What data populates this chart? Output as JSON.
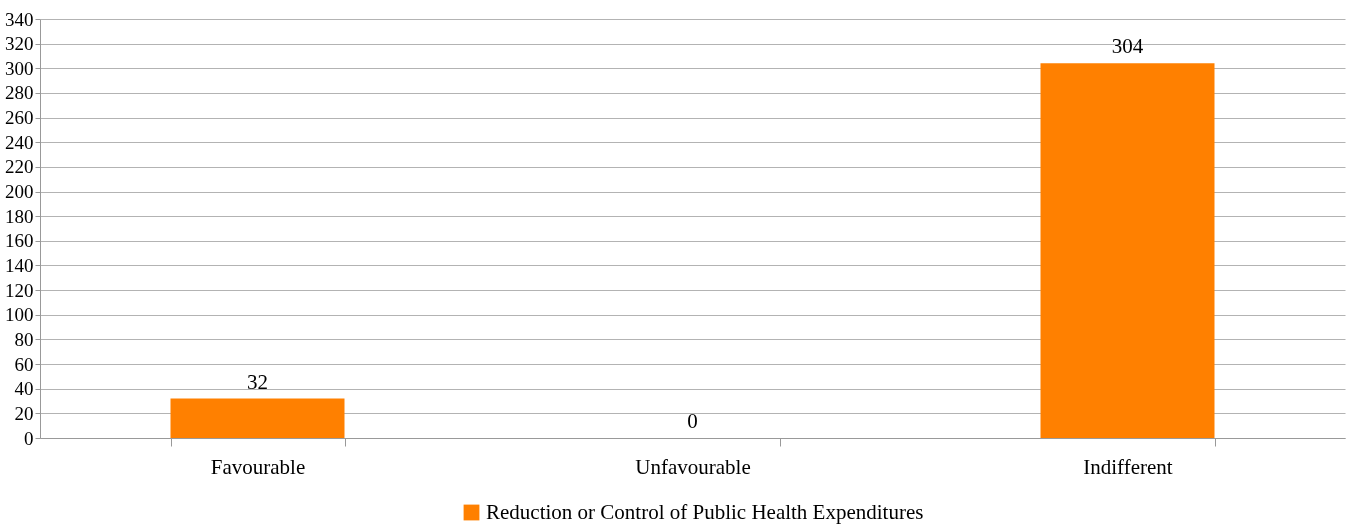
{
  "chart_data": {
    "type": "bar",
    "categories": [
      "Favourable",
      "Unfavourable",
      "Indifferent"
    ],
    "series": [
      {
        "name": "Reduction or Control of Public Health Expenditures",
        "color": "#ff8000",
        "values": [
          32,
          0,
          304
        ]
      }
    ],
    "ylim": [
      0,
      340
    ],
    "yticks": [
      0,
      20,
      40,
      60,
      80,
      100,
      120,
      140,
      160,
      180,
      200,
      220,
      240,
      260,
      280,
      300,
      320,
      340
    ],
    "grid": "y",
    "legend": "bottom",
    "data_labels": true
  }
}
